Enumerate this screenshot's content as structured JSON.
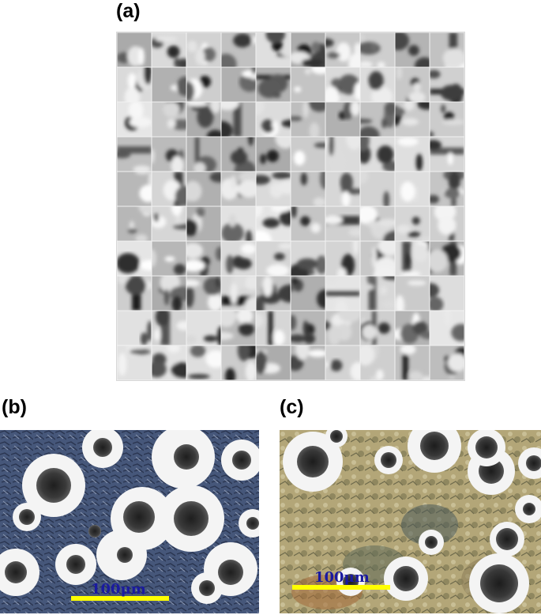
{
  "panels": {
    "a": {
      "label": "(a)",
      "grid_rows": 10,
      "grid_cols": 10
    },
    "b": {
      "label": "(b)",
      "scale_text": "100μm"
    },
    "c": {
      "label": "(c)",
      "scale_text": "100μm"
    }
  },
  "colors": {
    "scalebar": "#ffff00",
    "scale_text": "#1a1aa0",
    "b_background": "#3c4e72",
    "c_background": "#a99a6a",
    "nodule_core": "#3a3a3a",
    "ferrite_halo": "#f4f4f4"
  }
}
